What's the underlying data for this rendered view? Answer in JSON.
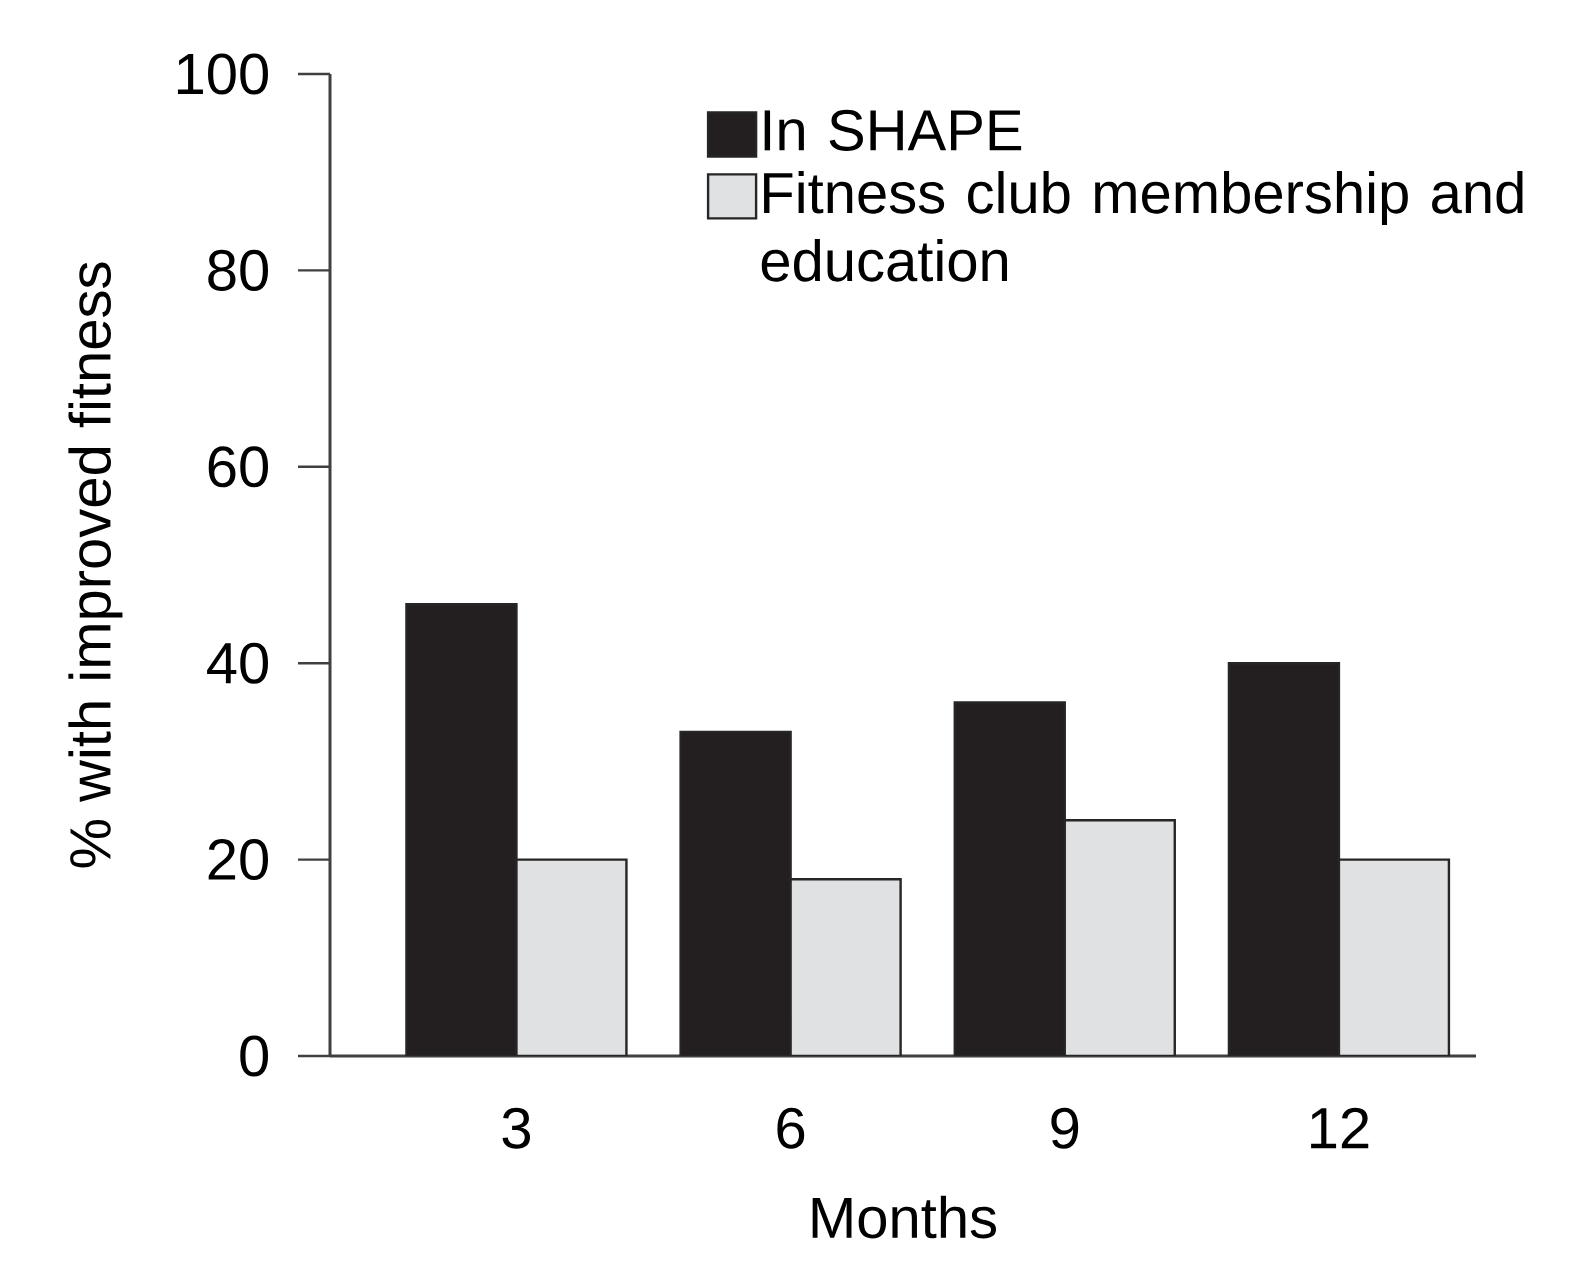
{
  "chart_data": {
    "type": "bar",
    "xlabel": "Months",
    "ylabel": "% with improved fitness",
    "categories": [
      "3",
      "6",
      "9",
      "12"
    ],
    "series": [
      {
        "name": "In SHAPE",
        "color": "#231f20",
        "values": [
          46,
          33,
          36,
          40
        ]
      },
      {
        "name": "Fitness club membership and education",
        "color": "#e0e1e3",
        "values": [
          20,
          18,
          24,
          20
        ]
      }
    ],
    "ylim": [
      0,
      100
    ],
    "yticks": [
      0,
      20,
      40,
      60,
      80,
      100
    ],
    "legend": "top right",
    "grid": false
  }
}
